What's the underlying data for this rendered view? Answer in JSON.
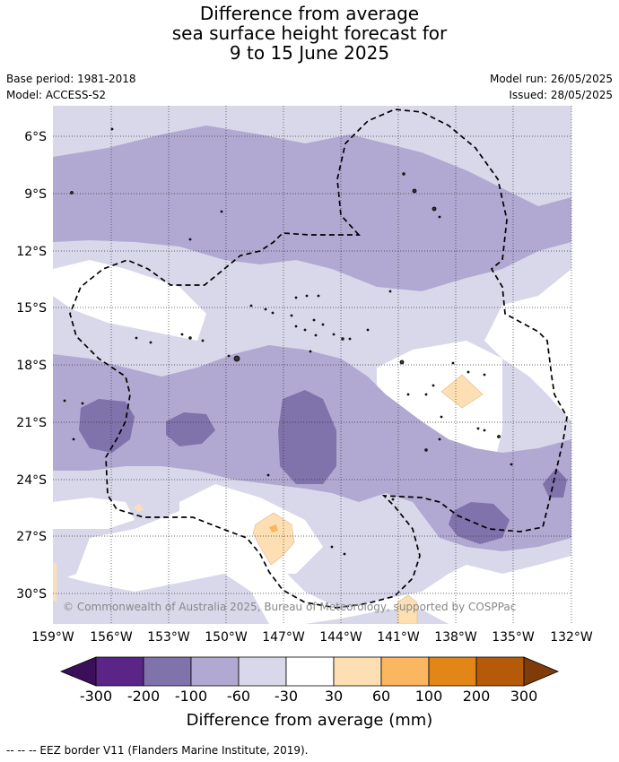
{
  "title": {
    "line1": "Difference from average",
    "line2": "sea surface height forecast for",
    "line3": "9 to 15 June 2025"
  },
  "meta_left": {
    "base_period": "Base period: 1981-2018",
    "model": "Model: ACCESS-S2"
  },
  "meta_right": {
    "model_run": "Model run: 26/05/2025",
    "issued": "Issued: 28/05/2025"
  },
  "map": {
    "lat_labels": [
      "6°S",
      "9°S",
      "12°S",
      "15°S",
      "18°S",
      "21°S",
      "24°S",
      "27°S",
      "30°S"
    ],
    "lon_labels": [
      "159°W",
      "156°W",
      "153°W",
      "150°W",
      "147°W",
      "144°W",
      "141°W",
      "138°W",
      "135°W",
      "132°W"
    ],
    "copyright": "© Commonwealth of Australia 2025, Bureau of Meteorology, supported by COSPPac"
  },
  "colorbar": {
    "title": "Difference from average (mm)",
    "labels": [
      "-300",
      "-200",
      "-100",
      "-60",
      "-30",
      "30",
      "60",
      "100",
      "200",
      "300"
    ],
    "colors": {
      "lt_minus300": "#3b0f5a",
      "m300_m200": "#5a2587",
      "m200_m100": "#8072ab",
      "m100_m60": "#b1a9d1",
      "m60_m30": "#d9d8eb",
      "m30_30": "#ffffff",
      "p30_60": "#fddfb3",
      "p60_100": "#fab660",
      "p100_200": "#e28618",
      "p200_300": "#b45a09",
      "gt_300": "#7f3b08"
    }
  },
  "footer": {
    "legend_note": "--  --  -- EEZ border V11 (Flanders Marine Institute, 2019)."
  }
}
